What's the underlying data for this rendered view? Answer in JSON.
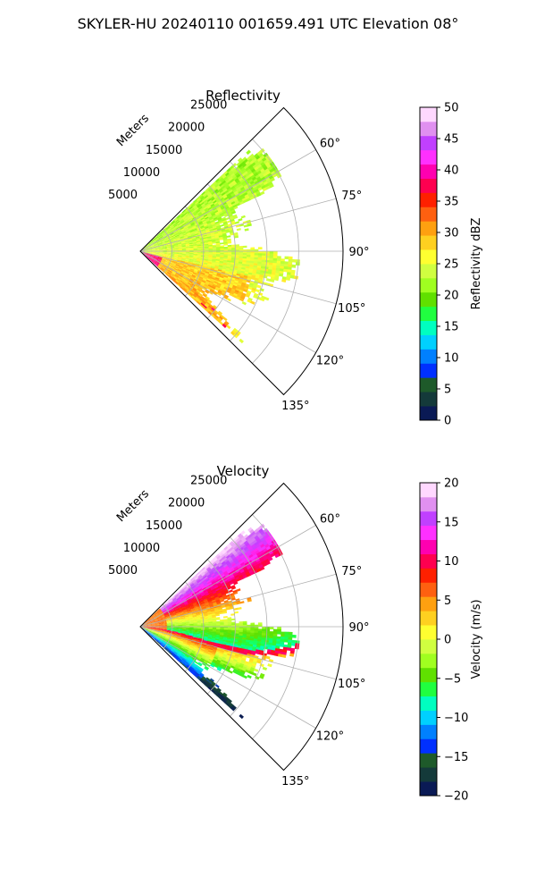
{
  "suptitle": "SKYLER-HU  20240110  001659.491 UTC Elevation 08°",
  "chart_data": [
    {
      "type": "heatmap",
      "projection": "polar-sector",
      "title": "Reflectivity",
      "radial_label": "Meters",
      "r_ticks": [
        5000,
        10000,
        15000,
        20000,
        25000
      ],
      "r_tick_labels": [
        "5000",
        "10000",
        "15000",
        "20000",
        "25000"
      ],
      "rlim": [
        0,
        32000
      ],
      "theta_ticks": [
        60,
        75,
        90,
        105,
        120,
        135
      ],
      "theta_tick_labels": [
        "60°",
        "75°",
        "90°",
        "105°",
        "120°",
        "135°"
      ],
      "thetalim": [
        45,
        135
      ],
      "theta_zero": "north",
      "theta_direction": "clockwise",
      "data_sector_deg": [
        47,
        132
      ],
      "data_range_m": [
        0,
        25000
      ],
      "grid": true,
      "colorbar": {
        "label": "Reflectivity dBZ",
        "range": [
          0,
          50
        ],
        "ticks": [
          0,
          5,
          10,
          15,
          20,
          25,
          30,
          35,
          40,
          45,
          50
        ],
        "tick_labels": [
          "0",
          "5",
          "10",
          "15",
          "20",
          "25",
          "30",
          "35",
          "40",
          "45",
          "50"
        ],
        "colors": [
          "#0a1a55",
          "#143a3a",
          "#1e5a2a",
          "#0030ff",
          "#0080ff",
          "#00d0ff",
          "#00ffc0",
          "#20ff40",
          "#60e000",
          "#a0ff20",
          "#d0ff40",
          "#ffff30",
          "#ffd020",
          "#ffa010",
          "#ff6010",
          "#ff2000",
          "#ff0050",
          "#ff00b0",
          "#ff30ff",
          "#c040ff",
          "#e090f0",
          "#ffd8ff"
        ]
      }
    },
    {
      "type": "heatmap",
      "projection": "polar-sector",
      "title": "Velocity",
      "radial_label": "Meters",
      "r_ticks": [
        5000,
        10000,
        15000,
        20000,
        25000
      ],
      "r_tick_labels": [
        "5000",
        "10000",
        "15000",
        "20000",
        "25000"
      ],
      "rlim": [
        0,
        32000
      ],
      "theta_ticks": [
        60,
        75,
        90,
        105,
        120,
        135
      ],
      "theta_tick_labels": [
        "60°",
        "75°",
        "90°",
        "105°",
        "120°",
        "135°"
      ],
      "thetalim": [
        45,
        135
      ],
      "theta_zero": "north",
      "theta_direction": "clockwise",
      "data_sector_deg": [
        47,
        132
      ],
      "data_range_m": [
        0,
        25000
      ],
      "grid": true,
      "colorbar": {
        "label": "Velocity (m/s)",
        "range": [
          -20,
          20
        ],
        "ticks": [
          -20,
          -15,
          -10,
          -5,
          0,
          5,
          10,
          15,
          20
        ],
        "tick_labels": [
          "−20",
          "−15",
          "−10",
          "−5",
          "0",
          "5",
          "10",
          "15",
          "20"
        ],
        "colors": [
          "#0a1a55",
          "#143a3a",
          "#1e5a2a",
          "#0030ff",
          "#0080ff",
          "#00d0ff",
          "#00ffc0",
          "#20ff40",
          "#60e000",
          "#a0ff20",
          "#d0ff40",
          "#ffff30",
          "#ffd020",
          "#ffa010",
          "#ff6010",
          "#ff2000",
          "#ff0050",
          "#ff00b0",
          "#ff30ff",
          "#c040ff",
          "#e090f0",
          "#ffd8ff"
        ]
      }
    }
  ]
}
